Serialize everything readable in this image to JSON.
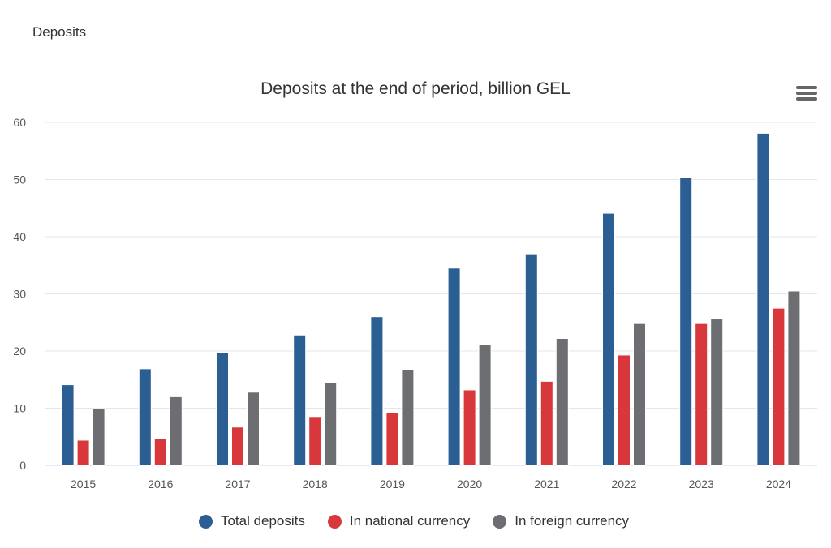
{
  "page": {
    "heading": "Deposits"
  },
  "menu": {
    "icon": "hamburger-menu-icon"
  },
  "colors": {
    "total": "#2B5F93",
    "national": "#D8373B",
    "foreign": "#6D6E72"
  },
  "chart_data": {
    "type": "bar",
    "title": "Deposits at the end of period, billion GEL",
    "xlabel": "",
    "ylabel": "",
    "ylim": [
      0,
      60
    ],
    "yticks": [
      0,
      10,
      20,
      30,
      40,
      50,
      60
    ],
    "grid": true,
    "legend_position": "bottom-center",
    "categories": [
      "2015",
      "2016",
      "2017",
      "2018",
      "2019",
      "2020",
      "2021",
      "2022",
      "2023",
      "2024"
    ],
    "series": [
      {
        "name": "Total deposits",
        "color": "#2B5F93",
        "values": [
          14.1,
          16.9,
          19.7,
          22.8,
          26.0,
          34.5,
          37.0,
          44.1,
          50.4,
          58.1
        ]
      },
      {
        "name": "In national currency",
        "color": "#D8373B",
        "values": [
          4.4,
          4.7,
          6.7,
          8.4,
          9.2,
          13.2,
          14.7,
          19.3,
          24.8,
          27.5
        ]
      },
      {
        "name": "In foreign currency",
        "color": "#6D6E72",
        "values": [
          9.9,
          12.0,
          12.8,
          14.4,
          16.7,
          21.1,
          22.2,
          24.8,
          25.6,
          30.5
        ]
      }
    ]
  }
}
